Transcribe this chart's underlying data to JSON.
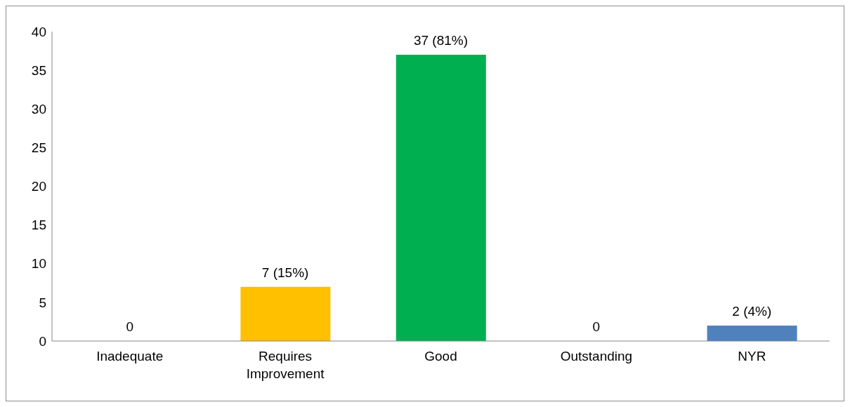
{
  "chart_data": {
    "type": "bar",
    "categories": [
      "Inadequate",
      "Requires Improvement",
      "Good",
      "Outstanding",
      "NYR"
    ],
    "values": [
      0,
      7,
      37,
      0,
      2
    ],
    "colors": [
      "#c00000",
      "#ffc000",
      "#00b050",
      "#0070c0",
      "#4f81bd"
    ],
    "value_labels": [
      "0",
      "7 (15%)",
      "37 (81%)",
      "0",
      "2 (4%)"
    ],
    "ylim": [
      0,
      40
    ],
    "yticks": [
      0,
      5,
      10,
      15,
      20,
      25,
      30,
      35,
      40
    ],
    "grid": false,
    "legend": false
  }
}
